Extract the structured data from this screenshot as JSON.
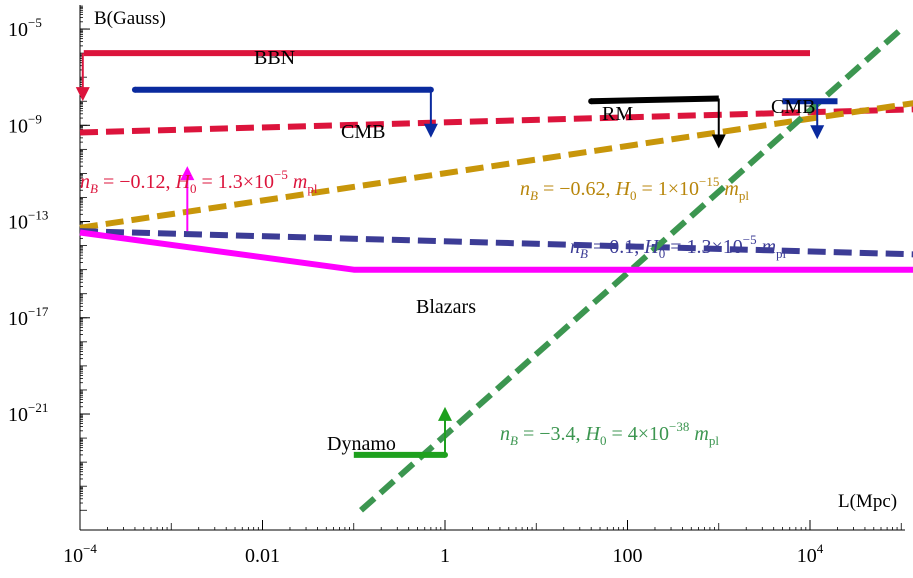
{
  "chart_data": {
    "type": "line",
    "xlabel": "L(Mpc)",
    "ylabel": "B(Gauss)",
    "xscale": "log",
    "yscale": "log",
    "xlim": [
      0.0001,
      1000000
    ],
    "ylim": [
      1e-25,
      0.0001
    ],
    "grid": false,
    "x_ticks": [
      {
        "value": 0.0001,
        "base": "10",
        "exp": "−4"
      },
      {
        "value": 0.01,
        "base": "0.01",
        "exp": ""
      },
      {
        "value": 1,
        "base": "1",
        "exp": ""
      },
      {
        "value": 100,
        "base": "100",
        "exp": ""
      },
      {
        "value": 10000,
        "base": "10",
        "exp": "4"
      }
    ],
    "y_ticks": [
      {
        "value": 1e-05,
        "base": "10",
        "exp": "−5"
      },
      {
        "value": 1e-09,
        "base": "10",
        "exp": "−9"
      },
      {
        "value": 1e-13,
        "base": "10",
        "exp": "−13"
      },
      {
        "value": 1e-17,
        "base": "10",
        "exp": "−17"
      },
      {
        "value": 1e-21,
        "base": "10",
        "exp": "−21"
      }
    ],
    "bounds": [
      {
        "label": "BBN",
        "color": "#dc143c",
        "points": [
          [
            0.00011,
            1e-06
          ],
          [
            10000,
            1e-06
          ]
        ],
        "arrow_down": true
      },
      {
        "label": "CMB",
        "color": "#0a2a9e",
        "points": [
          [
            0.0004,
            3e-08
          ],
          [
            0.7,
            3e-08
          ]
        ],
        "arrow_down": true
      },
      {
        "label": "RM",
        "color": "#000000",
        "points": [
          [
            40,
            1e-08
          ],
          [
            1000,
            1.3e-08
          ]
        ],
        "arrow_down": true
      },
      {
        "label": "CMB",
        "color": "#0a2a9e",
        "points": [
          [
            5000,
            1e-08
          ],
          [
            20000,
            1e-08
          ]
        ],
        "arrow_down": true
      },
      {
        "label": "Blazars",
        "color": "#ff00ff",
        "points": [
          [
            0.0001,
            3.5e-14
          ],
          [
            0.1,
            1e-15
          ],
          [
            300000,
            1e-15
          ]
        ],
        "arrow_up": true
      },
      {
        "label": "Dynamo",
        "color": "#1ea01e",
        "points": [
          [
            0.1,
            2e-23
          ],
          [
            1,
            2e-23
          ]
        ],
        "arrow_up": true
      }
    ],
    "series": [
      {
        "label": "n_B = −0.12, H_0 = 1.3×10^−5 m_pl",
        "color": "#dc143c",
        "points": [
          [
            0.0001,
            5e-10
          ],
          [
            300000,
            5e-09
          ]
        ]
      },
      {
        "label": "n_B = −0.62, H_0 = 1×10^−15 m_pl",
        "color": "#c8960a",
        "points": [
          [
            0.0001,
            5.5e-14
          ],
          [
            300000,
            1.3e-08
          ]
        ]
      },
      {
        "label": "n_B = 0.1, H_0 = 1.3×10^−5 m_pl",
        "color": "#3c3c96",
        "points": [
          [
            0.0001,
            4e-14
          ],
          [
            300000,
            4e-15
          ]
        ]
      },
      {
        "label": "n_B = −3.4, H_0 = 4×10^−38 m_pl",
        "color": "#3c9650",
        "points": [
          [
            0.12,
            1e-25
          ],
          [
            100000,
            1e-05
          ]
        ]
      }
    ],
    "text_labels": {
      "bbn": "BBN",
      "cmb1": "CMB",
      "cmb2": "CMB",
      "rm": "RM",
      "blazars": "Blazars",
      "dynamo": "Dynamo"
    },
    "curve_labels": {
      "red": {
        "nb": "−0.12",
        "h0m": "1.3",
        "h0e": "−5"
      },
      "gold": {
        "nb": "−0.62",
        "h0m": "1",
        "h0e": "−15"
      },
      "navy": {
        "nb": "0.1",
        "h0m": "1.3",
        "h0e": "−5"
      },
      "green": {
        "nb": "−3.4",
        "h0m": "4",
        "h0e": "−38"
      }
    }
  }
}
